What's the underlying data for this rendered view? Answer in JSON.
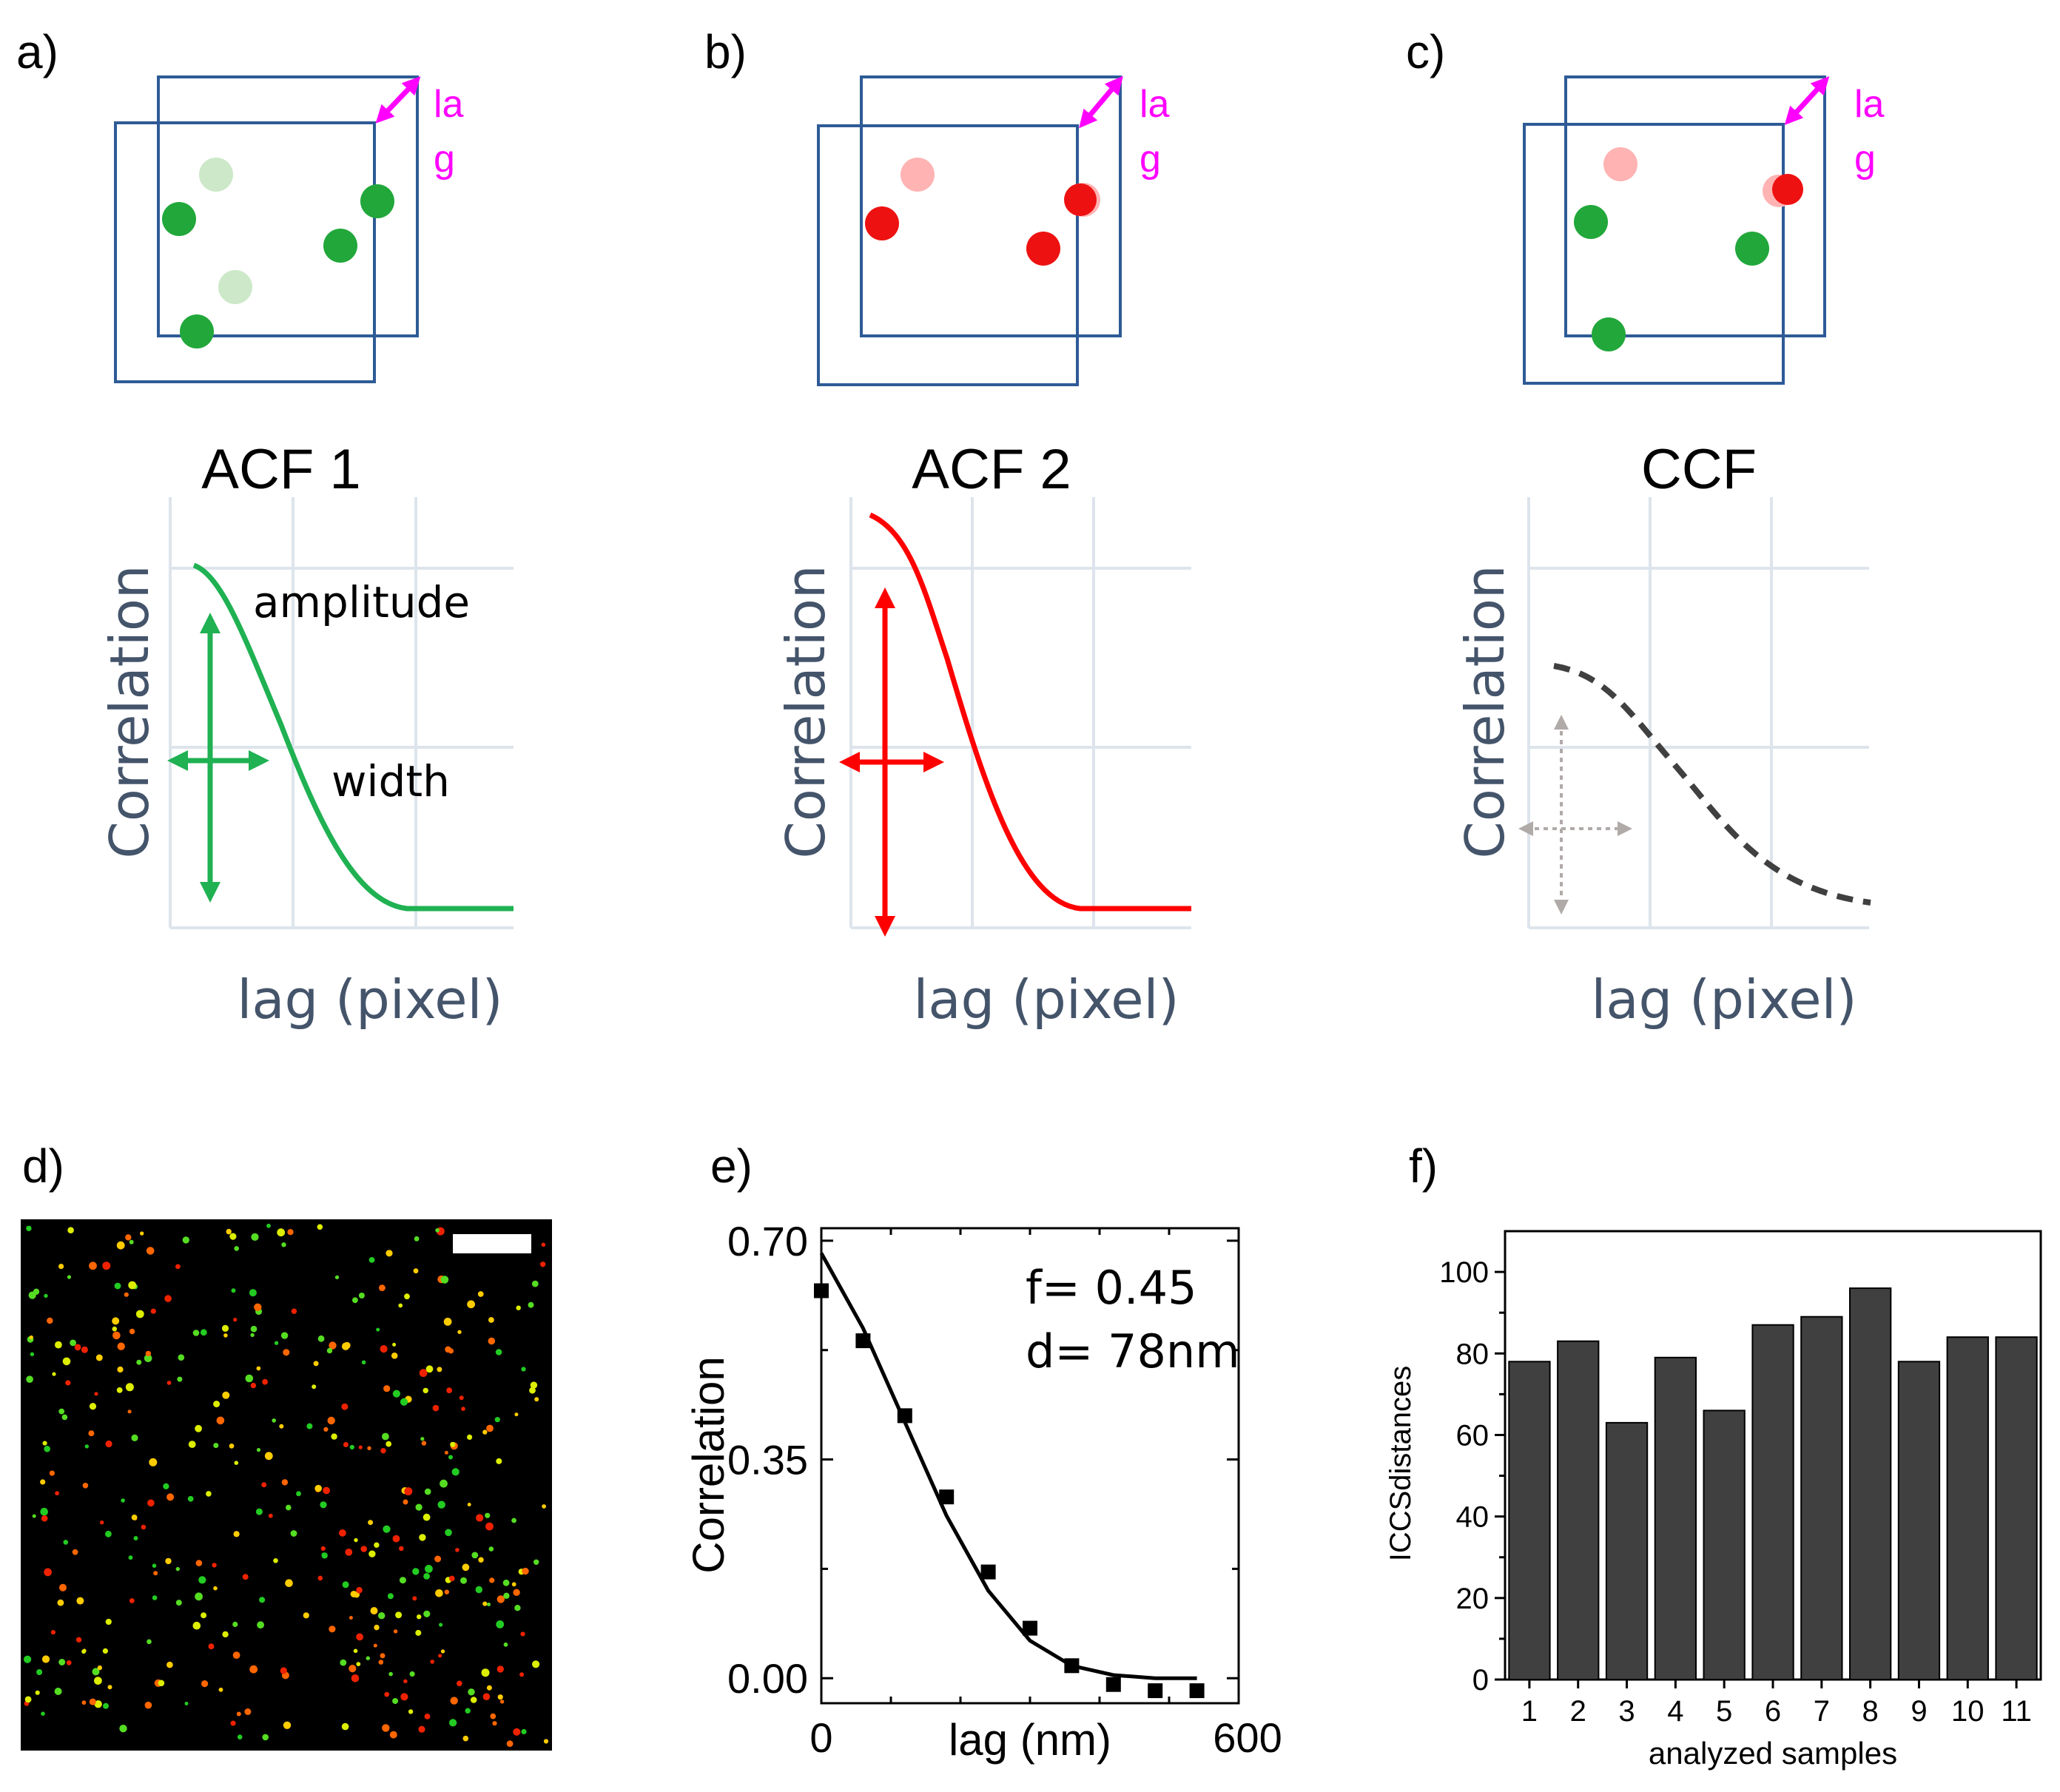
{
  "panels": {
    "a": {
      "letter": "a)",
      "lag": [
        "la",
        "g"
      ],
      "title": "ACF 1",
      "ylabel": "Correlation",
      "xlabel": "lag (pixel)",
      "amplitude_label": "amplitude",
      "width_label": "width",
      "color": "#21b24b"
    },
    "b": {
      "letter": "b)",
      "lag": [
        "la",
        "g"
      ],
      "title": "ACF 2",
      "ylabel": "Correlation",
      "xlabel": "lag (pixel)",
      "color": "#ff0000"
    },
    "c": {
      "letter": "c)",
      "lag": [
        "la",
        "g"
      ],
      "title": "CCF",
      "ylabel": "Correlation",
      "xlabel": "lag (pixel)",
      "color": "#404040"
    },
    "d": {
      "letter": "d)"
    },
    "e": {
      "letter": "e)"
    },
    "f": {
      "letter": "f)"
    }
  },
  "colors": {
    "frame": "#2e5b96",
    "lag_arrow": "#ff00ff",
    "axis_text": "#44546a",
    "grid": "#d9e1ea",
    "bar": "#404040",
    "green": "#21a73a",
    "red": "#ee1111"
  },
  "chart_data": [
    {
      "type": "scatter",
      "panel": "e)",
      "title": "",
      "xlabel": "lag (nm)",
      "ylabel": "Correlation",
      "xlim": [
        0,
        600
      ],
      "ylim": [
        -0.04,
        0.72
      ],
      "xticks": [
        "0",
        "600"
      ],
      "yticks": [
        "0.70",
        "0.35",
        "0.00"
      ],
      "annotations": [
        "f= 0.45",
        "d= 78nm"
      ],
      "points": {
        "x": [
          0,
          60,
          120,
          180,
          240,
          300,
          360,
          420,
          480,
          540
        ],
        "y": [
          0.62,
          0.54,
          0.42,
          0.29,
          0.17,
          0.08,
          0.02,
          -0.01,
          -0.02,
          -0.02
        ]
      },
      "fit": {
        "x": [
          0,
          60,
          120,
          180,
          240,
          300,
          360,
          420,
          480,
          540
        ],
        "y": [
          0.68,
          0.56,
          0.41,
          0.26,
          0.14,
          0.06,
          0.02,
          0.005,
          0.0,
          0.0
        ]
      }
    },
    {
      "type": "bar",
      "panel": "f)",
      "title": "",
      "xlabel": "analyzed samples",
      "ylabel": "ICCSdistances",
      "categories": [
        "1",
        "2",
        "3",
        "4",
        "5",
        "6",
        "7",
        "8",
        "9",
        "10",
        "11"
      ],
      "values": [
        78,
        83,
        63,
        79,
        66,
        87,
        89,
        96,
        78,
        84,
        84
      ],
      "ylim": [
        0,
        110
      ],
      "yticks": [
        "0",
        "20",
        "40",
        "60",
        "80",
        "100"
      ]
    }
  ]
}
